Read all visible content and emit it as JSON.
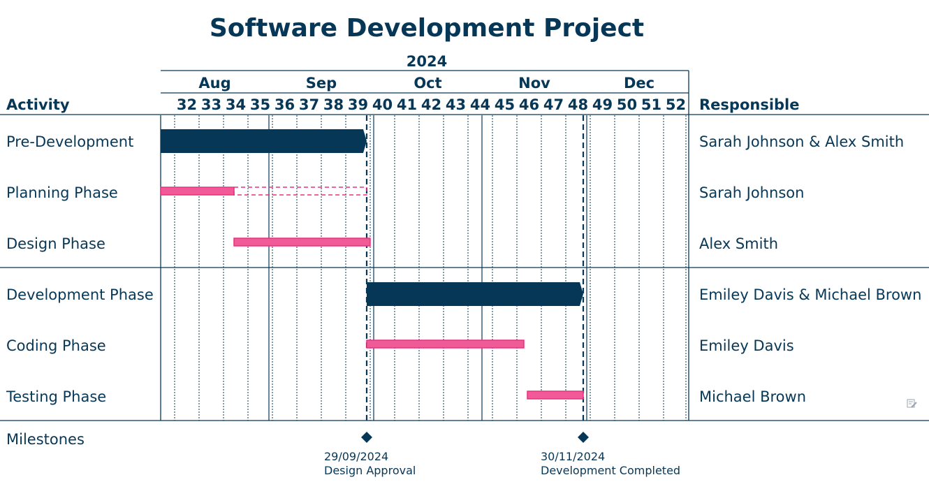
{
  "chart_data": {
    "type": "gantt",
    "title": "Software Development Project",
    "year": "2024",
    "months": [
      {
        "label": "Aug",
        "start": "2024-08-01"
      },
      {
        "label": "Sep",
        "start": "2024-09-01"
      },
      {
        "label": "Oct",
        "start": "2024-10-01"
      },
      {
        "label": "Nov",
        "start": "2024-11-01"
      },
      {
        "label": "Dec",
        "start": "2024-12-01"
      }
    ],
    "range": [
      "2024-08-01",
      "2024-12-31"
    ],
    "weeks": [
      "32",
      "33",
      "34",
      "35",
      "36",
      "37",
      "38",
      "39",
      "40",
      "41",
      "42",
      "43",
      "44",
      "45",
      "46",
      "47",
      "48",
      "49",
      "50",
      "51",
      "52"
    ],
    "first_week_start": "2024-08-05",
    "activity_header": "Activity",
    "responsible_header": "Responsible",
    "tasks": [
      {
        "activity": "Pre-Development",
        "responsible": "Sarah Johnson & Alex Smith",
        "type": "summary",
        "start": "2024-08-01",
        "end": "2024-09-29"
      },
      {
        "activity": "Planning Phase",
        "responsible": "Sarah Johnson",
        "type": "task",
        "start": "2024-08-01",
        "end": "2024-09-29",
        "progress_end": "2024-08-22"
      },
      {
        "activity": "Design Phase",
        "responsible": "Alex Smith",
        "type": "task",
        "start": "2024-08-22",
        "end": "2024-09-30"
      },
      {
        "activity": "Development Phase",
        "responsible": "Emiley Davis & Michael Brown",
        "type": "summary",
        "start": "2024-09-29",
        "end": "2024-11-30"
      },
      {
        "activity": "Coding Phase",
        "responsible": "Emiley Davis",
        "type": "task",
        "start": "2024-09-29",
        "end": "2024-11-13"
      },
      {
        "activity": "Testing Phase",
        "responsible": "Michael Brown",
        "type": "task",
        "start": "2024-11-14",
        "end": "2024-11-30"
      }
    ],
    "milestones_label": "Milestones",
    "milestones": [
      {
        "date": "2024-09-29",
        "date_label": "29/09/2024",
        "label": "Design Approval"
      },
      {
        "date": "2024-11-30",
        "date_label": "30/11/2024",
        "label": "Development Completed"
      }
    ],
    "colors": {
      "primary": "#063757",
      "task_fill": "#EF5A97",
      "task_border": "#E8337F"
    }
  },
  "edit_icon": "edit-icon"
}
